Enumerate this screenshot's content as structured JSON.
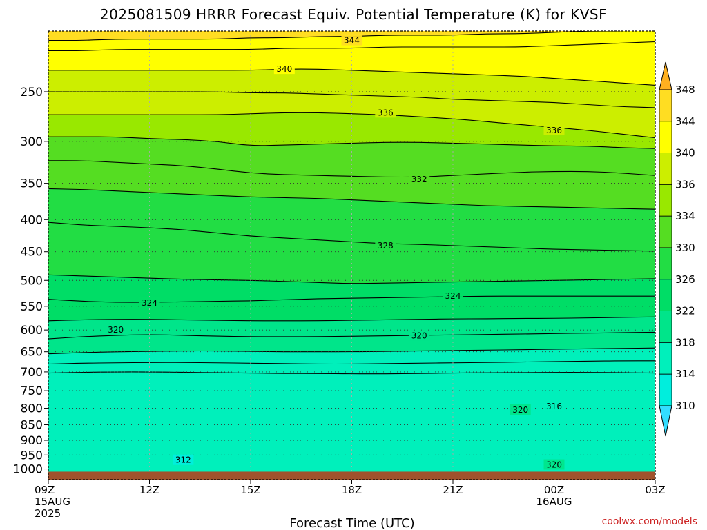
{
  "chart_data": {
    "type": "heatmap",
    "title": "2025081509 HRRR Forecast Equiv. Potential Temperature (K) for KVSF",
    "xlabel": "Forecast Time (UTC)",
    "x_ticks": [
      {
        "hour": 0,
        "lines": [
          "09Z",
          "15AUG",
          "2025"
        ]
      },
      {
        "hour": 3,
        "lines": [
          "12Z"
        ]
      },
      {
        "hour": 6,
        "lines": [
          "15Z"
        ]
      },
      {
        "hour": 9,
        "lines": [
          "18Z"
        ]
      },
      {
        "hour": 12,
        "lines": [
          "21Z"
        ]
      },
      {
        "hour": 15,
        "lines": [
          "00Z",
          "16AUG"
        ]
      },
      {
        "hour": 18,
        "lines": [
          "03Z"
        ]
      }
    ],
    "xlim": [
      0,
      18
    ],
    "y_axis": "pressure (hPa), log scale, inverted",
    "ylim": [
      1040,
      200
    ],
    "y_ticks": [
      250,
      300,
      350,
      400,
      450,
      500,
      550,
      600,
      650,
      700,
      750,
      800,
      850,
      900,
      950,
      1000
    ],
    "grid": true,
    "surface_pressure": 1010,
    "colorbar": {
      "ticks": [
        310,
        314,
        318,
        322,
        326,
        330,
        334,
        336,
        340,
        344,
        348
      ],
      "bins": [
        {
          "from": 308,
          "to": 310,
          "color": "#33ddff"
        },
        {
          "from": 310,
          "to": 314,
          "color": "#00eedd"
        },
        {
          "from": 314,
          "to": 318,
          "color": "#00f0bb"
        },
        {
          "from": 318,
          "to": 322,
          "color": "#00e58a"
        },
        {
          "from": 322,
          "to": 326,
          "color": "#00dd66"
        },
        {
          "from": 326,
          "to": 330,
          "color": "#22dd44"
        },
        {
          "from": 330,
          "to": 334,
          "color": "#55dd22"
        },
        {
          "from": 334,
          "to": 336,
          "color": "#99e800"
        },
        {
          "from": 336,
          "to": 340,
          "color": "#ccee00"
        },
        {
          "from": 340,
          "to": 344,
          "color": "#ffff00"
        },
        {
          "from": 344,
          "to": 348,
          "color": "#ffdd22"
        },
        {
          "from": 348,
          "to": 352,
          "color": "#ffb020"
        }
      ]
    },
    "contour_labels": [
      {
        "value": "344",
        "hour": 9.0,
        "pressure": 207
      },
      {
        "value": "340",
        "hour": 7.0,
        "pressure": 230
      },
      {
        "value": "336",
        "hour": 10.0,
        "pressure": 270
      },
      {
        "value": "336",
        "hour": 15.0,
        "pressure": 288
      },
      {
        "value": "332",
        "hour": 11.0,
        "pressure": 345
      },
      {
        "value": "328",
        "hour": 10.0,
        "pressure": 440
      },
      {
        "value": "324",
        "hour": 3.0,
        "pressure": 543
      },
      {
        "value": "324",
        "hour": 12.0,
        "pressure": 530
      },
      {
        "value": "320",
        "hour": 2.0,
        "pressure": 600
      },
      {
        "value": "320",
        "hour": 11.0,
        "pressure": 613
      },
      {
        "value": "320",
        "hour": 14.0,
        "pressure": 805
      },
      {
        "value": "316",
        "hour": 15.0,
        "pressure": 795
      },
      {
        "value": "312",
        "hour": 4.0,
        "pressure": 968
      },
      {
        "value": "320",
        "hour": 15.0,
        "pressure": 985
      }
    ],
    "isotherm_levels": [
      {
        "value": 344,
        "pressures": [
          207,
          207,
          206,
          206,
          206,
          206,
          205,
          205,
          204,
          204,
          203,
          203,
          203,
          202,
          202,
          201,
          200,
          200,
          199
        ]
      },
      {
        "value": 342,
        "pressures": [
          215,
          215,
          214,
          214,
          214,
          214,
          214,
          213,
          213,
          213,
          212,
          212,
          212,
          212,
          212,
          211,
          210,
          209,
          208
        ]
      },
      {
        "value": 340,
        "pressures": [
          231,
          231,
          231,
          231,
          231,
          231,
          231,
          230,
          230,
          231,
          232,
          233,
          234,
          235,
          236,
          238,
          240,
          242,
          244
        ]
      },
      {
        "value": 338,
        "pressures": [
          250,
          250,
          250,
          250,
          250,
          250,
          251,
          251,
          252,
          253,
          254,
          255,
          257,
          258,
          259,
          260,
          262,
          264,
          265
        ]
      },
      {
        "value": 336,
        "pressures": [
          272,
          272,
          272,
          272,
          272,
          272,
          271,
          270,
          270,
          271,
          272,
          274,
          276,
          279,
          282,
          285,
          288,
          292,
          296
        ]
      },
      {
        "value": 334,
        "pressures": [
          295,
          295,
          295,
          297,
          298,
          300,
          305,
          304,
          303,
          302,
          301,
          301,
          302,
          303,
          304,
          305,
          305,
          307,
          308
        ]
      },
      {
        "value": 332,
        "pressures": [
          322,
          322,
          324,
          326,
          328,
          332,
          337,
          339,
          340,
          341,
          342,
          342,
          340,
          338,
          336,
          335,
          335,
          337,
          340
        ]
      },
      {
        "value": 330,
        "pressures": [
          357,
          358,
          360,
          362,
          364,
          366,
          368,
          369,
          370,
          372,
          374,
          376,
          378,
          380,
          381,
          382,
          383,
          384,
          385
        ]
      },
      {
        "value": 328,
        "pressures": [
          404,
          408,
          410,
          412,
          415,
          420,
          425,
          428,
          431,
          434,
          437,
          438,
          440,
          442,
          444,
          446,
          447,
          448,
          449
        ]
      },
      {
        "value": 326,
        "pressures": [
          490,
          492,
          494,
          496,
          498,
          499,
          500,
          502,
          504,
          506,
          505,
          504,
          503,
          502,
          501,
          500,
          499,
          498,
          497
        ]
      },
      {
        "value": 324,
        "pressures": [
          536,
          540,
          542,
          542,
          541,
          540,
          539,
          537,
          535,
          534,
          533,
          532,
          531,
          530,
          530,
          530,
          530,
          530,
          530
        ]
      },
      {
        "value": 322,
        "pressures": [
          580,
          578,
          577,
          577,
          578,
          579,
          580,
          580,
          580,
          579,
          578,
          577,
          576,
          576,
          575,
          575,
          574,
          573,
          572
        ]
      },
      {
        "value": 320,
        "pressures": [
          620,
          615,
          612,
          610,
          612,
          614,
          615,
          615,
          615,
          614,
          613,
          612,
          611,
          610,
          609,
          608,
          607,
          606,
          605
        ]
      },
      {
        "value": 318,
        "pressures": [
          655,
          652,
          650,
          649,
          648,
          648,
          649,
          650,
          650,
          650,
          649,
          648,
          647,
          646,
          645,
          644,
          643,
          642,
          641
        ]
      },
      {
        "value": 316,
        "pressures": [
          680,
          678,
          677,
          676,
          676,
          677,
          678,
          679,
          680,
          680,
          679,
          678,
          677,
          676,
          675,
          674,
          673,
          672,
          672
        ]
      },
      {
        "value": 314,
        "pressures": [
          703,
          701,
          700,
          700,
          701,
          702,
          703,
          704,
          704,
          705,
          705,
          704,
          703,
          702,
          702,
          701,
          701,
          702,
          703
        ]
      }
    ],
    "notes": "Shading follows the colorbar; contour labels are shown where printed on the chart"
  },
  "credit": "coolwx.com/models"
}
